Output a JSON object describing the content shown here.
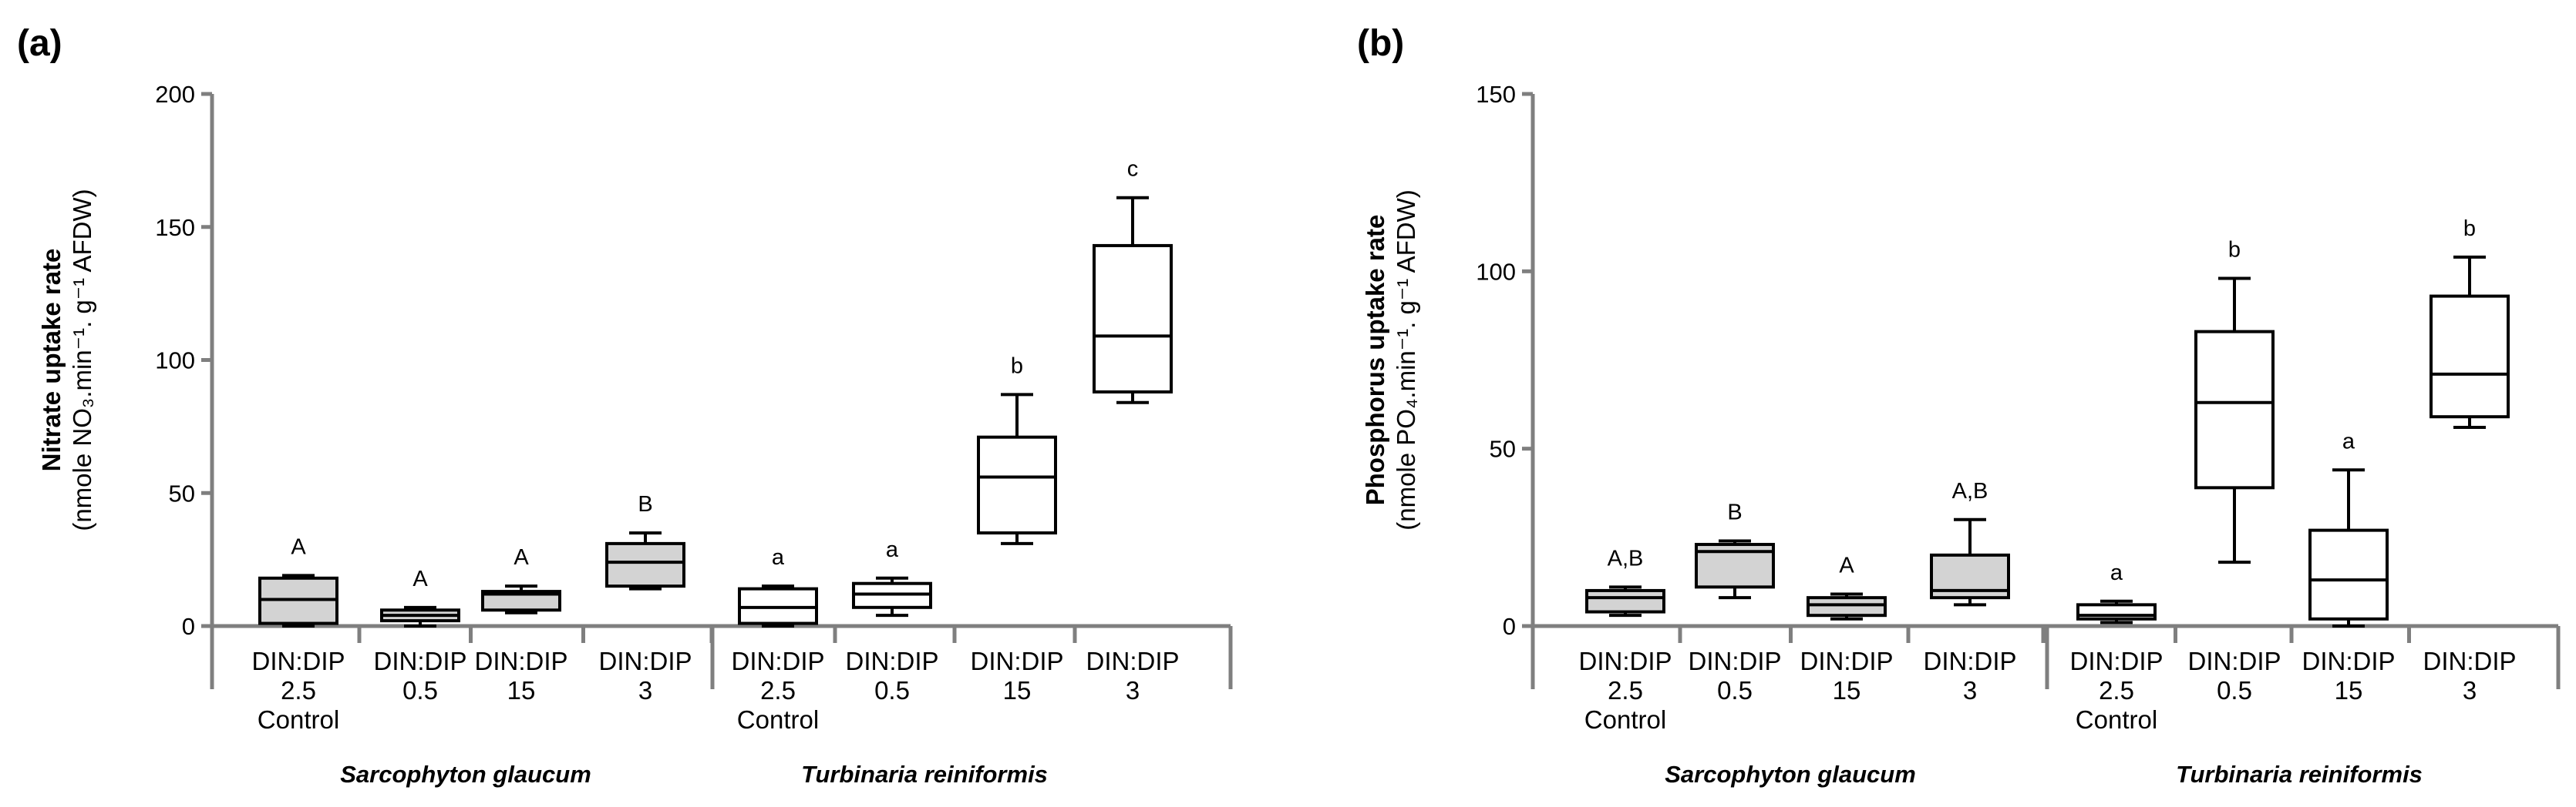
{
  "chart_data": [
    {
      "type": "boxplot",
      "panel_label": "(a)",
      "ylabel_line1": "Nitrate uptake rate",
      "ylabel_line2": "(nmole NO₃.min⁻¹. g⁻¹ AFDW)",
      "ylim": [
        0,
        200
      ],
      "yticks": [
        "0",
        "50",
        "100",
        "150",
        "200"
      ],
      "ytick_values": [
        0,
        50,
        100,
        150,
        200
      ],
      "groups": [
        {
          "name": "Sarcophyton glaucum",
          "start": 0,
          "end": 3
        },
        {
          "name": "Turbinaria reiniformis",
          "start": 4,
          "end": 7
        }
      ],
      "categories": [
        {
          "l1": "DIN:DIP",
          "l2": "2.5",
          "l3": "Control"
        },
        {
          "l1": "DIN:DIP",
          "l2": "0.5",
          "l3": ""
        },
        {
          "l1": "DIN:DIP",
          "l2": "15",
          "l3": ""
        },
        {
          "l1": "DIN:DIP",
          "l2": "3",
          "l3": ""
        },
        {
          "l1": "DIN:DIP",
          "l2": "2.5",
          "l3": "Control"
        },
        {
          "l1": "DIN:DIP",
          "l2": "0.5",
          "l3": ""
        },
        {
          "l1": "DIN:DIP",
          "l2": "15",
          "l3": ""
        },
        {
          "l1": "DIN:DIP",
          "l2": "3",
          "l3": ""
        }
      ],
      "boxes": [
        {
          "min": 0,
          "q1": 1,
          "median": 10,
          "q3": 18,
          "max": 19,
          "fill": "#d3d3d3",
          "label": "A"
        },
        {
          "min": 0,
          "q1": 2,
          "median": 4,
          "q3": 6,
          "max": 7,
          "fill": "#d3d3d3",
          "label": "A"
        },
        {
          "min": 5,
          "q1": 6,
          "median": 12,
          "q3": 13,
          "max": 15,
          "fill": "#d3d3d3",
          "label": "A"
        },
        {
          "min": 14,
          "q1": 15,
          "median": 24,
          "q3": 31,
          "max": 35,
          "fill": "#d3d3d3",
          "label": "B"
        },
        {
          "min": 0,
          "q1": 1,
          "median": 7,
          "q3": 14,
          "max": 15,
          "fill": "#ffffff",
          "label": "a"
        },
        {
          "min": 4,
          "q1": 7,
          "median": 12,
          "q3": 16,
          "max": 18,
          "fill": "#ffffff",
          "label": "a"
        },
        {
          "min": 31,
          "q1": 35,
          "median": 56,
          "q3": 71,
          "max": 87,
          "fill": "#ffffff",
          "label": "b"
        },
        {
          "min": 84,
          "q1": 88,
          "median": 109,
          "q3": 143,
          "max": 161,
          "fill": "#ffffff",
          "label": "c"
        }
      ]
    },
    {
      "type": "boxplot",
      "panel_label": "(b)",
      "ylabel_line1": "Phosphorus uptake rate",
      "ylabel_line2": "(nmole PO₄.min⁻¹. g⁻¹ AFDW)",
      "ylim": [
        0,
        150
      ],
      "yticks": [
        "0",
        "50",
        "100",
        "150"
      ],
      "ytick_values": [
        0,
        50,
        100,
        150
      ],
      "groups": [
        {
          "name": "Sarcophyton glaucum",
          "start": 0,
          "end": 3
        },
        {
          "name": "Turbinaria reiniformis",
          "start": 4,
          "end": 7
        }
      ],
      "categories": [
        {
          "l1": "DIN:DIP",
          "l2": "2.5",
          "l3": "Control"
        },
        {
          "l1": "DIN:DIP",
          "l2": "0.5",
          "l3": ""
        },
        {
          "l1": "DIN:DIP",
          "l2": "15",
          "l3": ""
        },
        {
          "l1": "DIN:DIP",
          "l2": "3",
          "l3": ""
        },
        {
          "l1": "DIN:DIP",
          "l2": "2.5",
          "l3": "Control"
        },
        {
          "l1": "DIN:DIP",
          "l2": "0.5",
          "l3": ""
        },
        {
          "l1": "DIN:DIP",
          "l2": "15",
          "l3": ""
        },
        {
          "l1": "DIN:DIP",
          "l2": "3",
          "l3": ""
        }
      ],
      "boxes": [
        {
          "min": 3,
          "q1": 4,
          "median": 8,
          "q3": 10,
          "max": 11,
          "fill": "#d3d3d3",
          "label": "A,B"
        },
        {
          "min": 8,
          "q1": 11,
          "median": 21,
          "q3": 23,
          "max": 24,
          "fill": "#d3d3d3",
          "label": "B"
        },
        {
          "min": 2,
          "q1": 3,
          "median": 6,
          "q3": 8,
          "max": 9,
          "fill": "#d3d3d3",
          "label": "A"
        },
        {
          "min": 6,
          "q1": 8,
          "median": 10,
          "q3": 20,
          "max": 30,
          "fill": "#d3d3d3",
          "label": "A,B"
        },
        {
          "min": 1,
          "q1": 2,
          "median": 3,
          "q3": 6,
          "max": 7,
          "fill": "#ffffff",
          "label": "a"
        },
        {
          "min": 18,
          "q1": 39,
          "median": 63,
          "q3": 83,
          "max": 98,
          "fill": "#ffffff",
          "label": "b"
        },
        {
          "min": 0,
          "q1": 2,
          "median": 13,
          "q3": 27,
          "max": 44,
          "fill": "#ffffff",
          "label": "a"
        },
        {
          "min": 56,
          "q1": 59,
          "median": 71,
          "q3": 93,
          "max": 104,
          "fill": "#ffffff",
          "label": "b"
        }
      ]
    }
  ]
}
